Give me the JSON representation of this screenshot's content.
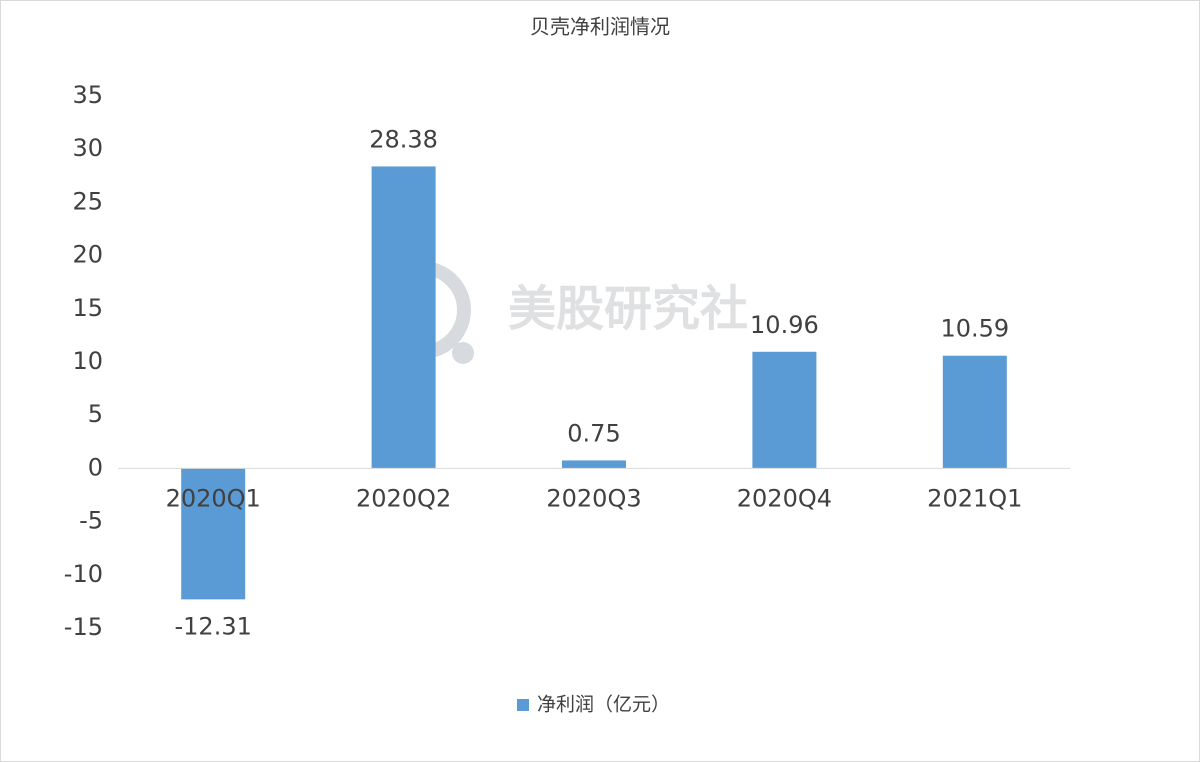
{
  "chart_data": {
    "type": "bar",
    "title": "贝壳净利润情况",
    "categories": [
      "2020Q1",
      "2020Q2",
      "2020Q3",
      "2020Q4",
      "2021Q1"
    ],
    "series": [
      {
        "name": "净利润（亿元）",
        "color": "#5b9bd5",
        "values": [
          -12.31,
          28.38,
          0.75,
          10.96,
          10.59
        ]
      }
    ],
    "ylim": [
      -15,
      35
    ],
    "yticks": [
      -15,
      -10,
      -5,
      0,
      5,
      10,
      15,
      20,
      25,
      30,
      35
    ],
    "grid": false,
    "legend": "bottom",
    "watermark": "美股研究社"
  }
}
